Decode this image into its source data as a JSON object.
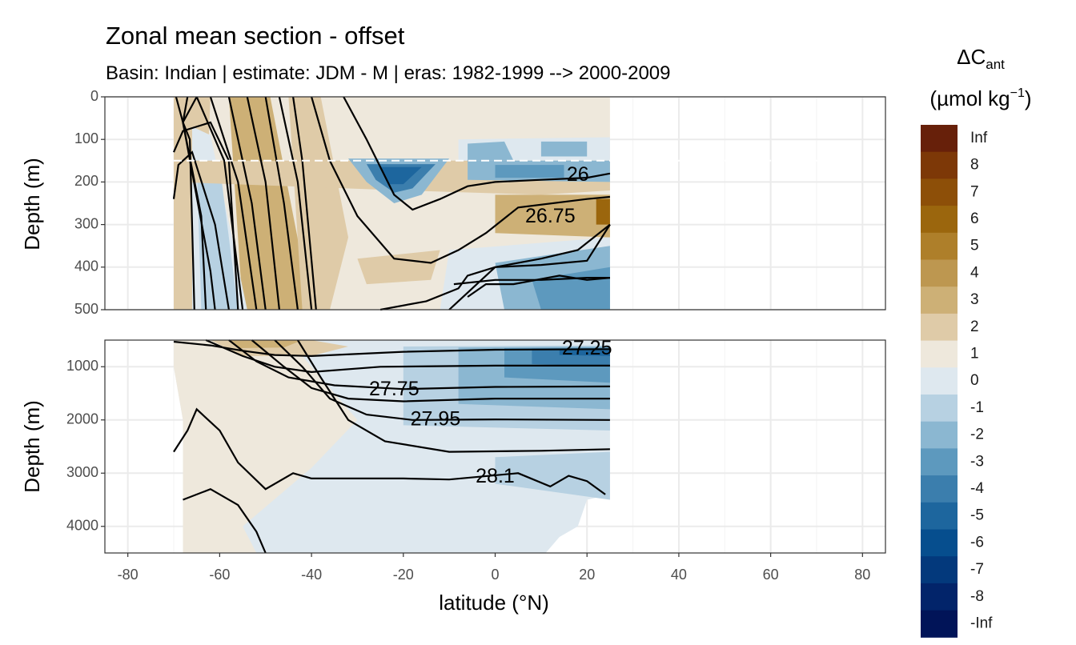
{
  "chart_data": {
    "type": "heatmap",
    "title": "Zonal mean section - offset",
    "subtitle": "Basin: Indian | estimate: JDM - M | eras: 1982-1999 --> 2000-2009",
    "xlabel": "latitude (°N)",
    "ylabel": "Depth (m)",
    "xlim": [
      -85,
      85
    ],
    "x_ticks": [
      -80,
      -60,
      -40,
      -20,
      0,
      20,
      40,
      60,
      80
    ],
    "x_tick_labels": [
      "-80",
      "-60",
      "-40",
      "-20",
      "0",
      "20",
      "40",
      "60",
      "80"
    ],
    "data_lat_range": [
      -70,
      25
    ],
    "panels": [
      {
        "name": "upper",
        "ylim": [
          0,
          500
        ],
        "y_ticks": [
          0,
          100,
          200,
          300,
          400,
          500
        ],
        "y_tick_labels": [
          "0",
          "100",
          "200",
          "300",
          "400",
          "500"
        ],
        "reference_depth": 150,
        "contour_labels": [
          {
            "text": "26",
            "lat": 18,
            "depth": 185
          },
          {
            "text": "26.75",
            "lat": 12,
            "depth": 283
          }
        ]
      },
      {
        "name": "lower",
        "ylim": [
          500,
          4500
        ],
        "y_ticks": [
          1000,
          2000,
          3000,
          4000
        ],
        "y_tick_labels": [
          "1000",
          "2000",
          "3000",
          "4000"
        ],
        "contour_labels": [
          {
            "text": "27.25",
            "lat": 20,
            "depth": 670
          },
          {
            "text": "27.75",
            "lat": -22,
            "depth": 1440
          },
          {
            "text": "27.95",
            "lat": -13,
            "depth": 2000
          },
          {
            "text": "28.1",
            "lat": 0,
            "depth": 3080
          }
        ]
      }
    ],
    "legend": {
      "title_main": "ΔC",
      "title_sub": "ant",
      "units_main": "(µmol kg",
      "units_sup": "−1",
      "units_close": ")",
      "labels": [
        "Inf",
        "8",
        "7",
        "6",
        "5",
        "4",
        "3",
        "2",
        "1",
        "0",
        "-1",
        "-2",
        "-3",
        "-4",
        "-5",
        "-6",
        "-7",
        "-8",
        "-Inf"
      ],
      "colors": [
        "#67200a",
        "#7d3807",
        "#8d4f08",
        "#9b660d",
        "#ae7f2a",
        "#bd9750",
        "#cdb076",
        "#dfcba8",
        "#eee8dc",
        "#dee8ef",
        "#b7d1e2",
        "#8bb7d1",
        "#5d99be",
        "#3b7ead",
        "#1d669e",
        "#064e8e",
        "#03397c",
        "#02246a",
        "#011458"
      ]
    }
  }
}
